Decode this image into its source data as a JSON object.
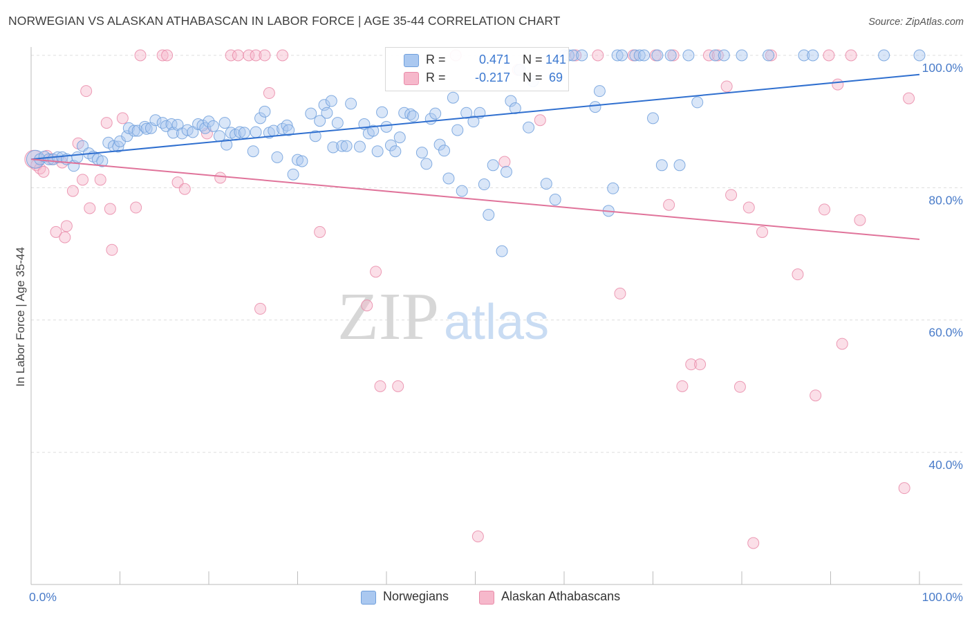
{
  "title": "NORWEGIAN VS ALASKAN ATHABASCAN IN LABOR FORCE | AGE 35-44 CORRELATION CHART",
  "source": "Source: ZipAtlas.com",
  "watermark": {
    "zip": "ZIP",
    "atlas": "atlas"
  },
  "legend": {
    "norwegians": {
      "r_key": "R =",
      "r_value": "0.471",
      "n_key": "N =",
      "n_value": "141"
    },
    "athabascans": {
      "r_key": "R =",
      "r_value": "-0.217",
      "n_key": "N =",
      "n_value": "69"
    }
  },
  "colors": {
    "norwegians_fill": "#aac8f0",
    "norwegians_stroke": "#6f9fdc",
    "norwegians_line": "#2f6fcf",
    "athabascans_fill": "#f6b8cb",
    "athabascans_stroke": "#e98aa8",
    "athabascans_line": "#e0739a",
    "tick_text": "#4a7cc9",
    "grid": "#dddddd"
  },
  "chart_data": {
    "type": "scatter",
    "title": "NORWEGIAN VS ALASKAN ATHABASCAN IN LABOR FORCE | AGE 35-44 CORRELATION CHART",
    "xlabel": "",
    "ylabel": "In Labor Force | Age 35-44",
    "xlim": [
      0,
      100
    ],
    "ylim": [
      19,
      100
    ],
    "x_tick_labels": [
      "0.0%",
      "100.0%"
    ],
    "y_ticks": [
      40,
      60,
      80,
      100
    ],
    "y_tick_labels": [
      "40.0%",
      "60.0%",
      "80.0%",
      "100.0%"
    ],
    "grid": true,
    "legend_position": "bottom",
    "series": [
      {
        "name": "Norwegians",
        "trendline": {
          "x": [
            0,
            100
          ],
          "y": [
            84.3,
            97.1
          ]
        },
        "points": [
          [
            0.5,
            84.3
          ],
          [
            1,
            84.3
          ],
          [
            1.5,
            84.7
          ],
          [
            2,
            84.3
          ],
          [
            2.5,
            84.3
          ],
          [
            3,
            84.6
          ],
          [
            3.5,
            84.6
          ],
          [
            4,
            84.3
          ],
          [
            4.8,
            83.3
          ],
          [
            5.2,
            84.6
          ],
          [
            5.8,
            86.3
          ],
          [
            6.5,
            85.2
          ],
          [
            7,
            84.7
          ],
          [
            7.5,
            84.3
          ],
          [
            8,
            84
          ],
          [
            8.7,
            86.8
          ],
          [
            9.3,
            86.3
          ],
          [
            9.8,
            86.2
          ],
          [
            10,
            87.0
          ],
          [
            10.8,
            87.8
          ],
          [
            11,
            89.0
          ],
          [
            11.6,
            88.6
          ],
          [
            12,
            88.6
          ],
          [
            12.8,
            89.2
          ],
          [
            13,
            88.9
          ],
          [
            13.5,
            89.0
          ],
          [
            14,
            90.2
          ],
          [
            14.8,
            89.8
          ],
          [
            15.2,
            89.3
          ],
          [
            15.8,
            89.6
          ],
          [
            16,
            88.3
          ],
          [
            16.5,
            89.5
          ],
          [
            17,
            88.2
          ],
          [
            17.6,
            88.7
          ],
          [
            18.2,
            88.4
          ],
          [
            18.8,
            89.6
          ],
          [
            19.3,
            89.4
          ],
          [
            19.6,
            89.0
          ],
          [
            20,
            90.0
          ],
          [
            20.5,
            89.3
          ],
          [
            21.2,
            87.8
          ],
          [
            21.8,
            89.8
          ],
          [
            22,
            86.5
          ],
          [
            22.5,
            88.3
          ],
          [
            23,
            88.0
          ],
          [
            23.5,
            88.4
          ],
          [
            24,
            88.3
          ],
          [
            25,
            85.5
          ],
          [
            25.3,
            88.4
          ],
          [
            25.8,
            90.5
          ],
          [
            26.3,
            91.5
          ],
          [
            26.8,
            88.3
          ],
          [
            27.3,
            88.6
          ],
          [
            27.7,
            84.6
          ],
          [
            28.3,
            88.9
          ],
          [
            28.8,
            89.4
          ],
          [
            29,
            88.7
          ],
          [
            29.5,
            82.0
          ],
          [
            30,
            84.2
          ],
          [
            30.5,
            84.0
          ],
          [
            31.5,
            91.2
          ],
          [
            32,
            87.8
          ],
          [
            32.5,
            90.1
          ],
          [
            33,
            92.5
          ],
          [
            33.3,
            91.3
          ],
          [
            33.8,
            93.1
          ],
          [
            34,
            86.1
          ],
          [
            34.5,
            89.8
          ],
          [
            35,
            86.3
          ],
          [
            35.5,
            86.3
          ],
          [
            36,
            92.7
          ],
          [
            37,
            86.2
          ],
          [
            37.5,
            89.6
          ],
          [
            38,
            88.2
          ],
          [
            38.5,
            88.6
          ],
          [
            39,
            85.5
          ],
          [
            39.5,
            91.4
          ],
          [
            40,
            89.2
          ],
          [
            40.5,
            86.4
          ],
          [
            41,
            85.5
          ],
          [
            41.5,
            87.6
          ],
          [
            42,
            91.3
          ],
          [
            42.7,
            91.1
          ],
          [
            43,
            90.8
          ],
          [
            44,
            85.3
          ],
          [
            44.5,
            83.6
          ],
          [
            45,
            90.4
          ],
          [
            45.5,
            91.2
          ],
          [
            46,
            86.5
          ],
          [
            46.5,
            85.6
          ],
          [
            47,
            81.4
          ],
          [
            47.5,
            93.6
          ],
          [
            48,
            88.7
          ],
          [
            48.5,
            79.5
          ],
          [
            49,
            91.3
          ],
          [
            49.8,
            90.0
          ],
          [
            50.5,
            91.3
          ],
          [
            51,
            80.5
          ],
          [
            51.5,
            75.9
          ],
          [
            52,
            83.4
          ],
          [
            53,
            70.4
          ],
          [
            53.5,
            82.4
          ],
          [
            54,
            93.1
          ],
          [
            54.5,
            92.0
          ],
          [
            55,
            97.8
          ],
          [
            56,
            89.1
          ],
          [
            56.5,
            96.1
          ],
          [
            58,
            80.6
          ],
          [
            59,
            78.2
          ],
          [
            60,
            100
          ],
          [
            60.5,
            100
          ],
          [
            61,
            100
          ],
          [
            62,
            100
          ],
          [
            63.5,
            92.2
          ],
          [
            64,
            94.6
          ],
          [
            65,
            76.5
          ],
          [
            65.5,
            79.9
          ],
          [
            66,
            100
          ],
          [
            66.5,
            100
          ],
          [
            68,
            100
          ],
          [
            68.5,
            100
          ],
          [
            69,
            100
          ],
          [
            70,
            90.5
          ],
          [
            70.5,
            100
          ],
          [
            71,
            83.4
          ],
          [
            72,
            100
          ],
          [
            73,
            83.4
          ],
          [
            74,
            100
          ],
          [
            75,
            92.9
          ],
          [
            77,
            100
          ],
          [
            78,
            100
          ],
          [
            80,
            100
          ],
          [
            83,
            100
          ],
          [
            87,
            100
          ],
          [
            88,
            100
          ],
          [
            96,
            100
          ],
          [
            100,
            100
          ]
        ]
      },
      {
        "name": "Alaskan Athabascans",
        "trendline": {
          "x": [
            0,
            100
          ],
          "y": [
            84.3,
            72.2
          ]
        },
        "points": [
          [
            0.3,
            84.3
          ],
          [
            0.6,
            83.4
          ],
          [
            1,
            82.9
          ],
          [
            1.4,
            82.4
          ],
          [
            1.8,
            84.8
          ],
          [
            2.3,
            84.3
          ],
          [
            2.8,
            73.3
          ],
          [
            3.5,
            83.8
          ],
          [
            3.8,
            72.5
          ],
          [
            4,
            74.2
          ],
          [
            4.7,
            79.5
          ],
          [
            5.3,
            86.7
          ],
          [
            5.8,
            81.2
          ],
          [
            6.2,
            94.6
          ],
          [
            6.6,
            76.9
          ],
          [
            7.8,
            81.2
          ],
          [
            8.5,
            89.8
          ],
          [
            8.9,
            76.8
          ],
          [
            9.1,
            70.6
          ],
          [
            10.3,
            90.5
          ],
          [
            11.8,
            77.0
          ],
          [
            12.3,
            100
          ],
          [
            14.8,
            100
          ],
          [
            15.3,
            100
          ],
          [
            16.5,
            80.8
          ],
          [
            17.3,
            79.8
          ],
          [
            19.8,
            88.2
          ],
          [
            21.3,
            81.5
          ],
          [
            22.5,
            100
          ],
          [
            23.3,
            100
          ],
          [
            24.5,
            100
          ],
          [
            25.3,
            100
          ],
          [
            25.8,
            61.7
          ],
          [
            26.3,
            100
          ],
          [
            26.8,
            94.3
          ],
          [
            28.3,
            100
          ],
          [
            32.5,
            73.3
          ],
          [
            37.8,
            62.2
          ],
          [
            38.8,
            67.3
          ],
          [
            39.3,
            50.0
          ],
          [
            41.3,
            50.0
          ],
          [
            47.8,
            100
          ],
          [
            50.3,
            27.3
          ],
          [
            53.3,
            83.9
          ],
          [
            54.8,
            97.8
          ],
          [
            57.3,
            90.2
          ],
          [
            61.3,
            100
          ],
          [
            63.8,
            100
          ],
          [
            66.3,
            64.0
          ],
          [
            67.8,
            100
          ],
          [
            70.3,
            100
          ],
          [
            71.8,
            77.4
          ],
          [
            72.3,
            100
          ],
          [
            73.3,
            50.0
          ],
          [
            74.3,
            53.3
          ],
          [
            75.3,
            53.3
          ],
          [
            76.3,
            100
          ],
          [
            77.3,
            100
          ],
          [
            78.3,
            95.3
          ],
          [
            78.8,
            78.9
          ],
          [
            79.8,
            49.9
          ],
          [
            80.8,
            77.0
          ],
          [
            81.3,
            26.3
          ],
          [
            82.3,
            73.3
          ],
          [
            83.3,
            100
          ],
          [
            86.3,
            66.9
          ],
          [
            88.3,
            48.6
          ],
          [
            89.3,
            76.7
          ],
          [
            89.8,
            100
          ],
          [
            90.8,
            95.6
          ],
          [
            91.3,
            56.4
          ],
          [
            92.3,
            100
          ],
          [
            93.3,
            75.1
          ],
          [
            98.3,
            34.6
          ],
          [
            98.8,
            93.5
          ]
        ]
      }
    ]
  }
}
